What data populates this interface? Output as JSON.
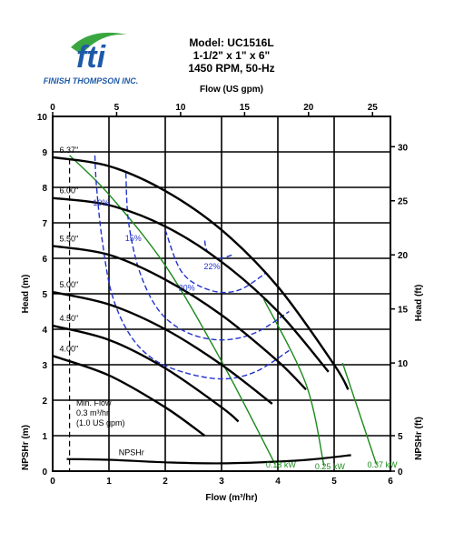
{
  "logo": {
    "mark": "fti",
    "company": "FINISH THOMPSON INC."
  },
  "chart_data": {
    "type": "line",
    "title_lines": [
      "Model: UC1516L",
      "1-1/2\" x 1\" x 6\"",
      "1450 RPM, 50-Hz"
    ],
    "x_axis": {
      "label": "Flow (m³/hr)",
      "range": [
        0,
        6
      ],
      "ticks": [
        "0",
        "1",
        "2",
        "3",
        "4",
        "5",
        "6"
      ]
    },
    "x2_axis": {
      "label": "Flow (US gpm)",
      "range": [
        0,
        26.4
      ],
      "ticks": [
        "0",
        "5",
        "10",
        "15",
        "20",
        "25"
      ]
    },
    "y_axis": {
      "label": "Head (m)",
      "range": [
        0,
        10
      ],
      "ticks": [
        "1",
        "2",
        "3",
        "4",
        "5",
        "6",
        "7",
        "8",
        "9",
        "10"
      ]
    },
    "y_axis_right": {
      "label": "Head (ft)",
      "range": [
        0,
        32.8
      ],
      "ticks": [
        "10",
        "15",
        "20",
        "25",
        "30"
      ]
    },
    "npshr_axis_left": {
      "label": "NPSHr (m)",
      "range": [
        0,
        1
      ],
      "ticks": [
        "0"
      ]
    },
    "npshr_axis_right": {
      "label": "NPSHr (ft)",
      "range": [
        0,
        5
      ],
      "ticks": [
        "0",
        "5"
      ]
    },
    "grid": true,
    "impeller_curves": [
      {
        "name": "6.37\"",
        "points": [
          [
            0,
            8.85
          ],
          [
            1,
            8.6
          ],
          [
            2,
            7.9
          ],
          [
            3,
            6.8
          ],
          [
            4,
            5.2
          ],
          [
            5,
            3.0
          ],
          [
            5.25,
            2.3
          ]
        ]
      },
      {
        "name": "6.00\"",
        "points": [
          [
            0,
            7.7
          ],
          [
            1,
            7.5
          ],
          [
            2,
            6.9
          ],
          [
            3,
            5.9
          ],
          [
            4,
            4.5
          ],
          [
            4.9,
            2.8
          ]
        ]
      },
      {
        "name": "5.50\"",
        "points": [
          [
            0,
            6.35
          ],
          [
            1,
            6.1
          ],
          [
            2,
            5.4
          ],
          [
            3,
            4.4
          ],
          [
            4,
            3.1
          ],
          [
            4.5,
            2.3
          ]
        ]
      },
      {
        "name": "5.00\"",
        "points": [
          [
            0,
            5.05
          ],
          [
            1,
            4.7
          ],
          [
            2,
            4.0
          ],
          [
            3,
            3.0
          ],
          [
            3.9,
            1.9
          ]
        ]
      },
      {
        "name": "4.50\"",
        "points": [
          [
            0,
            4.1
          ],
          [
            1,
            3.7
          ],
          [
            2,
            2.9
          ],
          [
            3,
            1.8
          ],
          [
            3.3,
            1.4
          ]
        ]
      },
      {
        "name": "4.00\"",
        "points": [
          [
            0,
            3.25
          ],
          [
            1,
            2.7
          ],
          [
            2,
            1.8
          ],
          [
            2.7,
            1.0
          ]
        ]
      }
    ],
    "efficiency_curves": [
      {
        "name": "10%",
        "points": [
          [
            0.75,
            8.9
          ],
          [
            0.78,
            8.0
          ],
          [
            0.88,
            6.5
          ],
          [
            1.05,
            5.0
          ],
          [
            1.35,
            3.9
          ],
          [
            1.75,
            3.2
          ],
          [
            2.3,
            2.8
          ],
          [
            3.0,
            2.6
          ],
          [
            3.6,
            2.8
          ],
          [
            4.2,
            3.4
          ]
        ]
      },
      {
        "name": "15%",
        "points": [
          [
            1.3,
            8.4
          ],
          [
            1.35,
            7.0
          ],
          [
            1.55,
            5.6
          ],
          [
            1.9,
            4.5
          ],
          [
            2.4,
            3.9
          ],
          [
            3.0,
            3.7
          ],
          [
            3.6,
            3.9
          ],
          [
            4.2,
            4.5
          ]
        ]
      },
      {
        "name": "20%",
        "points": [
          [
            2.0,
            6.8
          ],
          [
            2.3,
            5.6
          ],
          [
            2.8,
            5.1
          ],
          [
            3.3,
            5.1
          ],
          [
            3.8,
            5.6
          ]
        ]
      },
      {
        "name": "22%",
        "points": [
          [
            2.7,
            6.5
          ],
          [
            2.75,
            6.2
          ],
          [
            2.95,
            6.0
          ],
          [
            3.2,
            6.1
          ]
        ]
      }
    ],
    "min_flow_line": {
      "x": 0.3
    },
    "min_flow_label": [
      "Min. Flow",
      "0.3 m³/hr",
      "(1.0 US gpm)"
    ],
    "power_curves": [
      {
        "name": "0.18 kW",
        "points": [
          [
            0.3,
            8.9
          ],
          [
            1.0,
            7.8
          ],
          [
            2.0,
            5.8
          ],
          [
            3.0,
            3.1
          ],
          [
            3.95,
            0.2
          ]
        ]
      },
      {
        "name": "0.25 kW",
        "points": [
          [
            3.75,
            4.85
          ],
          [
            4.5,
            2.45
          ],
          [
            4.82,
            0.15
          ]
        ]
      },
      {
        "name": "0.37 kW",
        "points": [
          [
            5.15,
            3.05
          ],
          [
            5.75,
            0.2
          ]
        ]
      }
    ],
    "npshr": {
      "name": "NPSHr",
      "points": [
        [
          0.25,
          0.34
        ],
        [
          1,
          0.32
        ],
        [
          2,
          0.25
        ],
        [
          3,
          0.22
        ],
        [
          4,
          0.27
        ],
        [
          4.6,
          0.33
        ],
        [
          5.3,
          0.45
        ]
      ]
    }
  }
}
